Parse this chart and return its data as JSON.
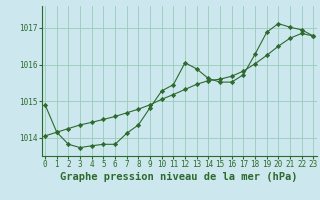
{
  "title": "Graphe pression niveau de la mer (hPa)",
  "background_color": "#cce8ee",
  "grid_color": "#99ccbb",
  "line_color": "#2d6a2d",
  "marker_color": "#2d6a2d",
  "x_ticks": [
    0,
    1,
    2,
    3,
    4,
    5,
    6,
    7,
    8,
    9,
    10,
    11,
    12,
    13,
    14,
    15,
    16,
    17,
    18,
    19,
    20,
    21,
    22,
    23
  ],
  "y_ticks": [
    1014,
    1015,
    1016,
    1017
  ],
  "ylim": [
    1013.5,
    1017.6
  ],
  "xlim": [
    -0.3,
    23.3
  ],
  "series1_x": [
    0,
    1,
    2,
    3,
    4,
    5,
    6,
    7,
    8,
    9,
    10,
    11,
    12,
    13,
    14,
    15,
    16,
    17,
    18,
    19,
    20,
    21,
    22,
    23
  ],
  "series1_y": [
    1014.9,
    1014.15,
    1013.82,
    1013.73,
    1013.78,
    1013.82,
    1013.82,
    1014.12,
    1014.35,
    1014.82,
    1015.28,
    1015.45,
    1016.05,
    1015.88,
    1015.62,
    1015.52,
    1015.52,
    1015.72,
    1016.28,
    1016.88,
    1017.12,
    1017.02,
    1016.95,
    1016.78
  ],
  "series2_x": [
    0,
    1,
    2,
    3,
    4,
    5,
    6,
    7,
    8,
    9,
    10,
    11,
    12,
    13,
    14,
    15,
    16,
    17,
    18,
    19,
    20,
    21,
    22,
    23
  ],
  "series2_y": [
    1014.05,
    1014.15,
    1014.25,
    1014.35,
    1014.42,
    1014.5,
    1014.58,
    1014.68,
    1014.78,
    1014.9,
    1015.05,
    1015.18,
    1015.32,
    1015.46,
    1015.56,
    1015.6,
    1015.68,
    1015.82,
    1016.02,
    1016.25,
    1016.5,
    1016.72,
    1016.85,
    1016.78
  ],
  "tick_fontsize": 5.5,
  "title_fontsize": 7.5,
  "figwidth": 3.2,
  "figheight": 2.0,
  "dpi": 100
}
